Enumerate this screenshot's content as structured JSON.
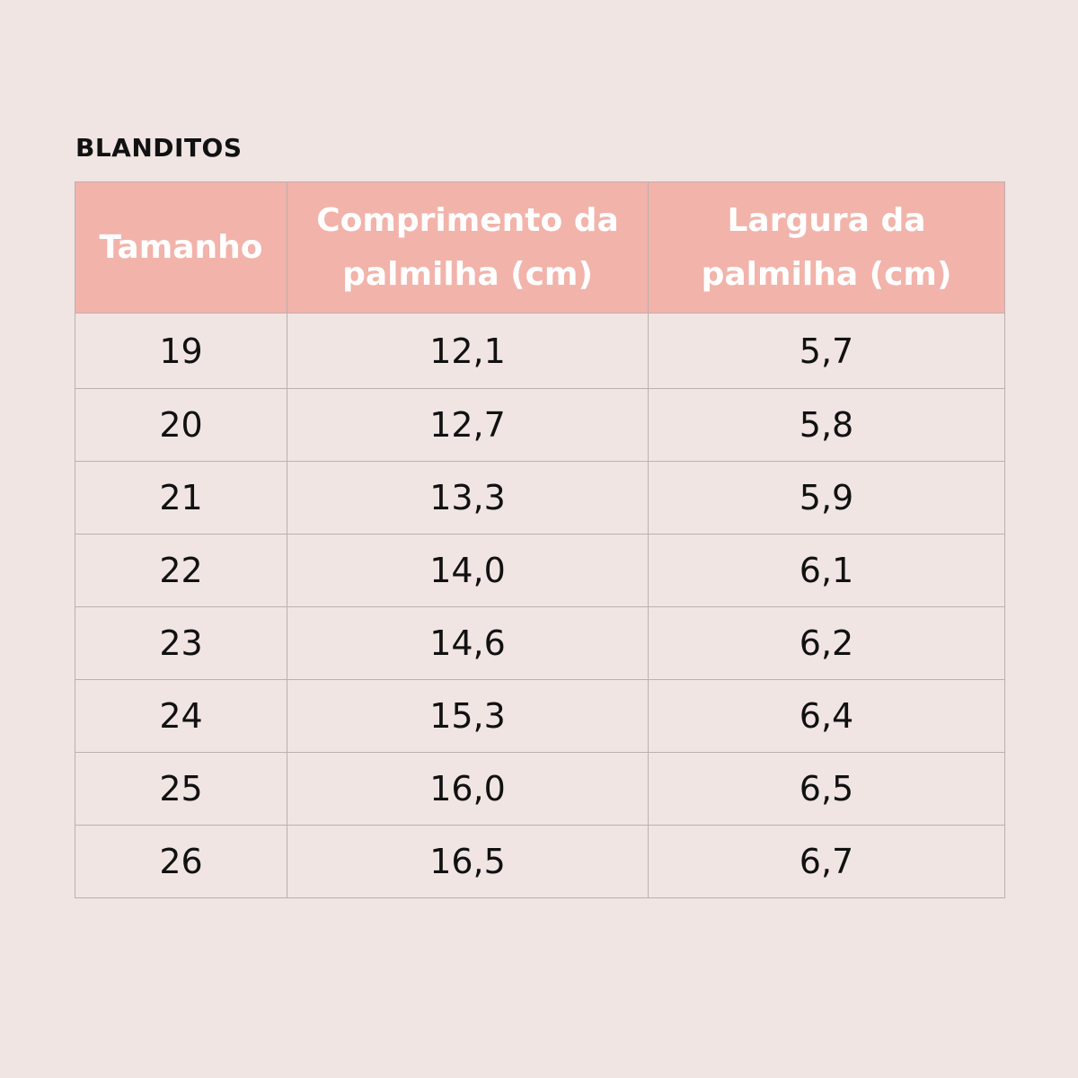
{
  "brand": "BLANDITOS",
  "table": {
    "headers": {
      "size": "Tamanho",
      "length": "Comprimento da palmilha (cm)",
      "width": "Largura da palmilha (cm)"
    },
    "rows": [
      {
        "size": "19",
        "length": "12,1",
        "width": "5,7"
      },
      {
        "size": "20",
        "length": "12,7",
        "width": "5,8"
      },
      {
        "size": "21",
        "length": "13,3",
        "width": "5,9"
      },
      {
        "size": "22",
        "length": "14,0",
        "width": "6,1"
      },
      {
        "size": "23",
        "length": "14,6",
        "width": "6,2"
      },
      {
        "size": "24",
        "length": "15,3",
        "width": "6,4"
      },
      {
        "size": "25",
        "length": "16,0",
        "width": "6,5"
      },
      {
        "size": "26",
        "length": "16,5",
        "width": "6,7"
      }
    ]
  },
  "colors": {
    "background": "#f0e5e3",
    "header_fill": "#f2b3aa",
    "header_text": "#ffffff",
    "grid_line": "#bdb0ae",
    "body_text": "#111111"
  }
}
